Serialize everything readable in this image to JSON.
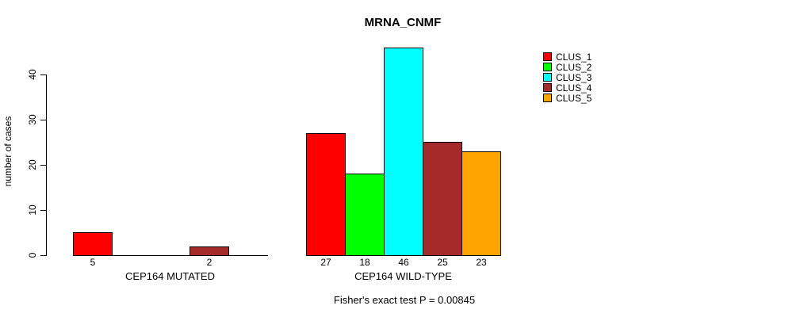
{
  "chart_data": {
    "type": "bar",
    "title": "MRNA_CNMF",
    "ylabel": "number of cases",
    "ylim": [
      0,
      46
    ],
    "yticks": [
      0,
      10,
      20,
      30,
      40
    ],
    "grid": false,
    "legend_position": "top-right",
    "series": [
      {
        "name": "CLUS_1",
        "color": "#FF0000"
      },
      {
        "name": "CLUS_2",
        "color": "#00FF00"
      },
      {
        "name": "CLUS_3",
        "color": "#00FFFF"
      },
      {
        "name": "CLUS_4",
        "color": "#A52A2A"
      },
      {
        "name": "CLUS_5",
        "color": "#FFA500"
      }
    ],
    "categories": [
      "CEP164 MUTATED",
      "CEP164 WILD-TYPE"
    ],
    "groups": [
      {
        "label": "CEP164 MUTATED",
        "values": [
          5,
          0,
          0,
          2,
          0
        ]
      },
      {
        "label": "CEP164 WILD-TYPE",
        "values": [
          27,
          18,
          46,
          25,
          23
        ]
      }
    ],
    "bar_labels_shown_only_for_nonzero": true,
    "footnote": "Fisher's exact test P = 0.00845"
  }
}
